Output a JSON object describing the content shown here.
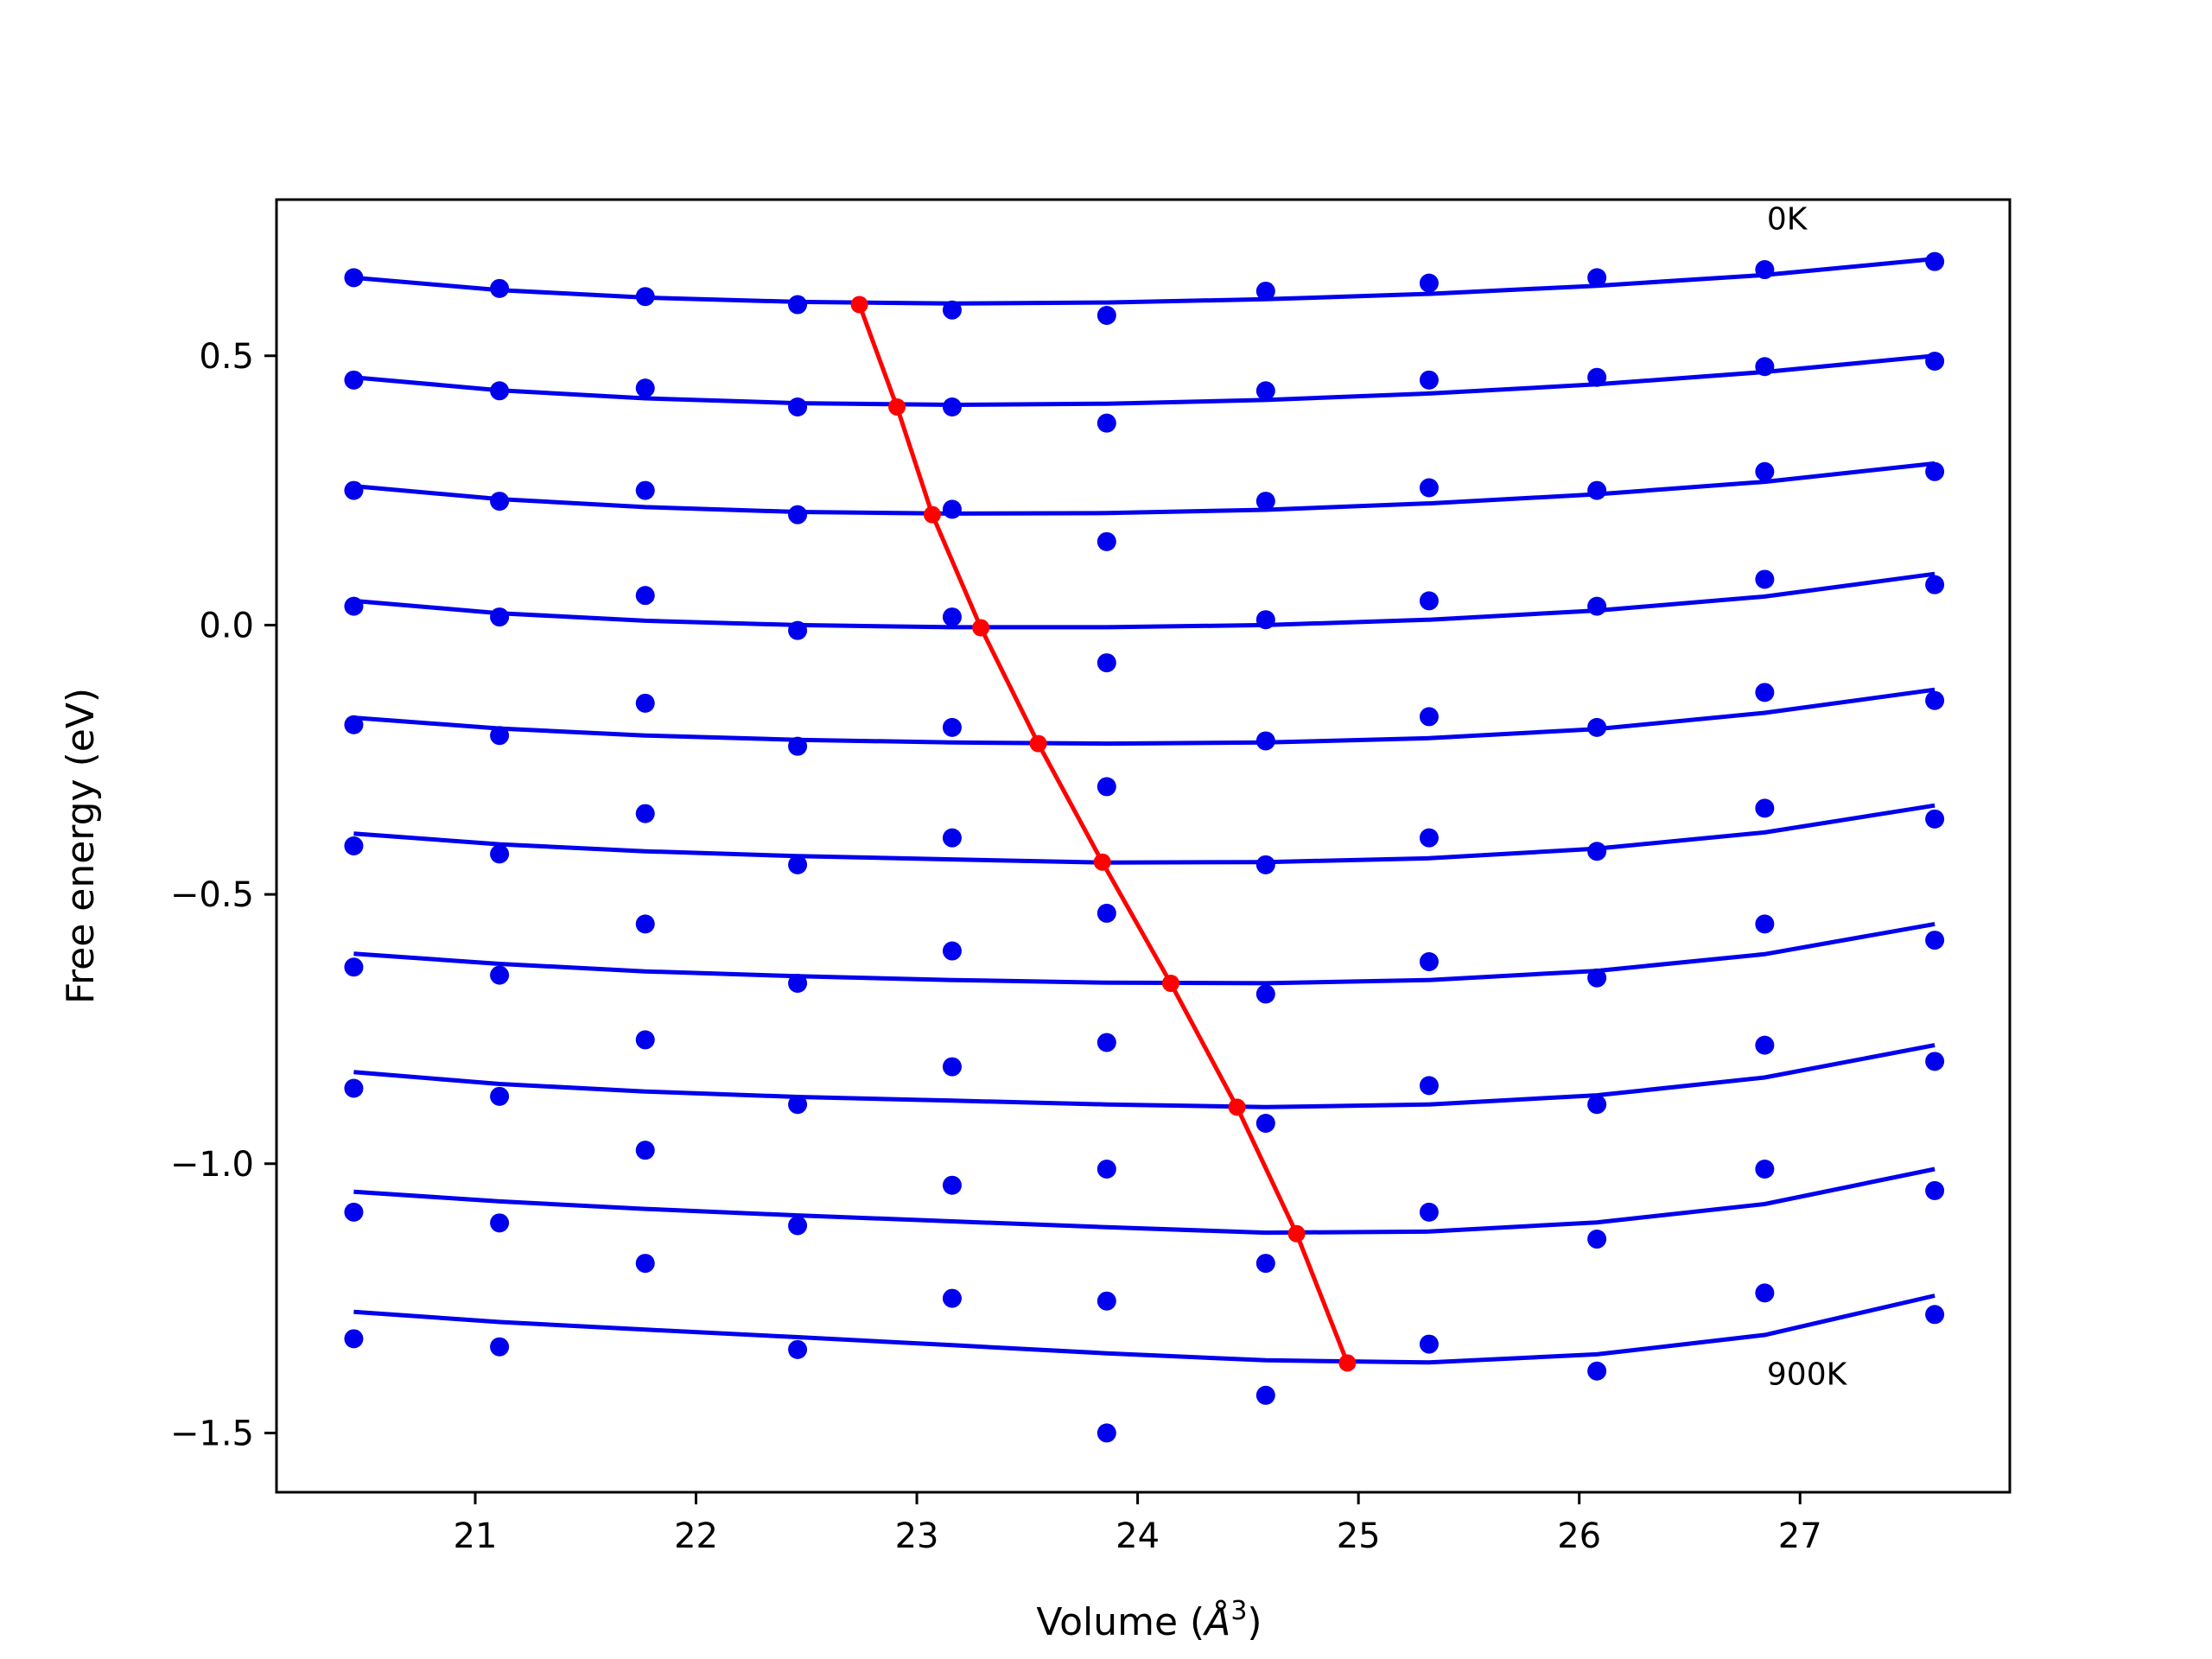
{
  "chart_data": {
    "type": "line",
    "title": "",
    "xlabel": "Volume (",
    "xlabel_symbol": "Å",
    "xlabel_exp": "3",
    "xlabel_close": ")",
    "ylabel": "Free energy (eV)",
    "xlim": [
      20.1,
      27.95
    ],
    "ylim": [
      -1.61,
      0.79
    ],
    "xticks": [
      21,
      22,
      23,
      24,
      25,
      26,
      27
    ],
    "xtick_labels": [
      "21",
      "22",
      "23",
      "24",
      "25",
      "26",
      "27"
    ],
    "yticks": [
      0.5,
      0.0,
      -0.5,
      -1.0,
      -1.5
    ],
    "ytick_labels": [
      "0.5",
      "0.0",
      "−0.5",
      "−1.0",
      "−1.5"
    ],
    "grid": false,
    "colors": {
      "series": "#0000ee",
      "minima": "#ff0000",
      "axes": "#000000"
    },
    "annotations": [
      {
        "text": "0K",
        "x": 26.85,
        "y": 0.735
      },
      {
        "text": "900K",
        "x": 26.85,
        "y": -1.41
      }
    ],
    "volumes": [
      20.45,
      21.11,
      21.77,
      22.46,
      23.16,
      23.86,
      24.58,
      25.32,
      26.08,
      26.84,
      27.61
    ],
    "series": [
      {
        "points": [
          0.645,
          0.625,
          0.61,
          0.595,
          0.585,
          0.575,
          0.62,
          0.635,
          0.645,
          0.66,
          0.675
        ],
        "fit": [
          0.645,
          0.622,
          0.608,
          0.6,
          0.597,
          0.599,
          0.605,
          0.615,
          0.63,
          0.65,
          0.68
        ]
      },
      {
        "points": [
          0.455,
          0.435,
          0.44,
          0.405,
          0.405,
          0.375,
          0.435,
          0.455,
          0.46,
          0.48,
          0.49
        ],
        "fit": [
          0.46,
          0.436,
          0.421,
          0.412,
          0.409,
          0.411,
          0.418,
          0.43,
          0.447,
          0.47,
          0.5
        ]
      },
      {
        "points": [
          0.25,
          0.23,
          0.25,
          0.205,
          0.215,
          0.155,
          0.23,
          0.255,
          0.25,
          0.285,
          0.285
        ],
        "fit": [
          0.258,
          0.234,
          0.219,
          0.21,
          0.207,
          0.208,
          0.214,
          0.226,
          0.243,
          0.266,
          0.3
        ]
      },
      {
        "points": [
          0.035,
          0.015,
          0.055,
          -0.01,
          0.015,
          -0.07,
          0.01,
          0.045,
          0.035,
          0.085,
          0.075
        ],
        "fit": [
          0.045,
          0.022,
          0.008,
          0.0,
          -0.004,
          -0.004,
          0.0,
          0.01,
          0.027,
          0.053,
          0.095
        ]
      },
      {
        "points": [
          -0.185,
          -0.205,
          -0.145,
          -0.225,
          -0.19,
          -0.3,
          -0.215,
          -0.17,
          -0.19,
          -0.125,
          -0.14
        ],
        "fit": [
          -0.172,
          -0.192,
          -0.205,
          -0.213,
          -0.218,
          -0.22,
          -0.218,
          -0.21,
          -0.193,
          -0.163,
          -0.12
        ]
      },
      {
        "points": [
          -0.41,
          -0.425,
          -0.35,
          -0.445,
          -0.395,
          -0.535,
          -0.445,
          -0.395,
          -0.42,
          -0.34,
          -0.36
        ],
        "fit": [
          -0.387,
          -0.407,
          -0.42,
          -0.429,
          -0.435,
          -0.441,
          -0.44,
          -0.433,
          -0.415,
          -0.385,
          -0.335
        ]
      },
      {
        "points": [
          -0.635,
          -0.65,
          -0.555,
          -0.665,
          -0.605,
          -0.775,
          -0.685,
          -0.625,
          -0.655,
          -0.555,
          -0.585
        ],
        "fit": [
          -0.61,
          -0.629,
          -0.643,
          -0.652,
          -0.659,
          -0.664,
          -0.665,
          -0.659,
          -0.642,
          -0.611,
          -0.555
        ]
      },
      {
        "points": [
          -0.86,
          -0.875,
          -0.77,
          -0.89,
          -0.82,
          -1.01,
          -0.925,
          -0.855,
          -0.89,
          -0.78,
          -0.81
        ],
        "fit": [
          -0.83,
          -0.852,
          -0.866,
          -0.876,
          -0.883,
          -0.89,
          -0.895,
          -0.89,
          -0.873,
          -0.84,
          -0.78
        ]
      },
      {
        "points": [
          -1.09,
          -1.11,
          -0.975,
          -1.115,
          -1.04,
          -1.255,
          -1.185,
          -1.09,
          -1.14,
          -1.01,
          -1.05
        ],
        "fit": [
          -1.052,
          -1.07,
          -1.084,
          -1.096,
          -1.107,
          -1.118,
          -1.128,
          -1.126,
          -1.109,
          -1.075,
          -1.01
        ]
      },
      {
        "points": [
          -1.325,
          -1.34,
          -1.185,
          -1.345,
          -1.25,
          -1.5,
          -1.43,
          -1.335,
          -1.385,
          -1.24,
          -1.28
        ],
        "fit": [
          -1.275,
          -1.294,
          -1.308,
          -1.322,
          -1.337,
          -1.352,
          -1.365,
          -1.369,
          -1.354,
          -1.318,
          -1.245
        ]
      }
    ],
    "minima": {
      "x": [
        22.74,
        22.91,
        23.07,
        23.29,
        23.55,
        23.84,
        24.15,
        24.45,
        24.72,
        24.95
      ],
      "y": [
        0.595,
        0.405,
        0.205,
        -0.005,
        -0.22,
        -0.44,
        -0.665,
        -0.895,
        -1.13,
        -1.37
      ]
    }
  }
}
